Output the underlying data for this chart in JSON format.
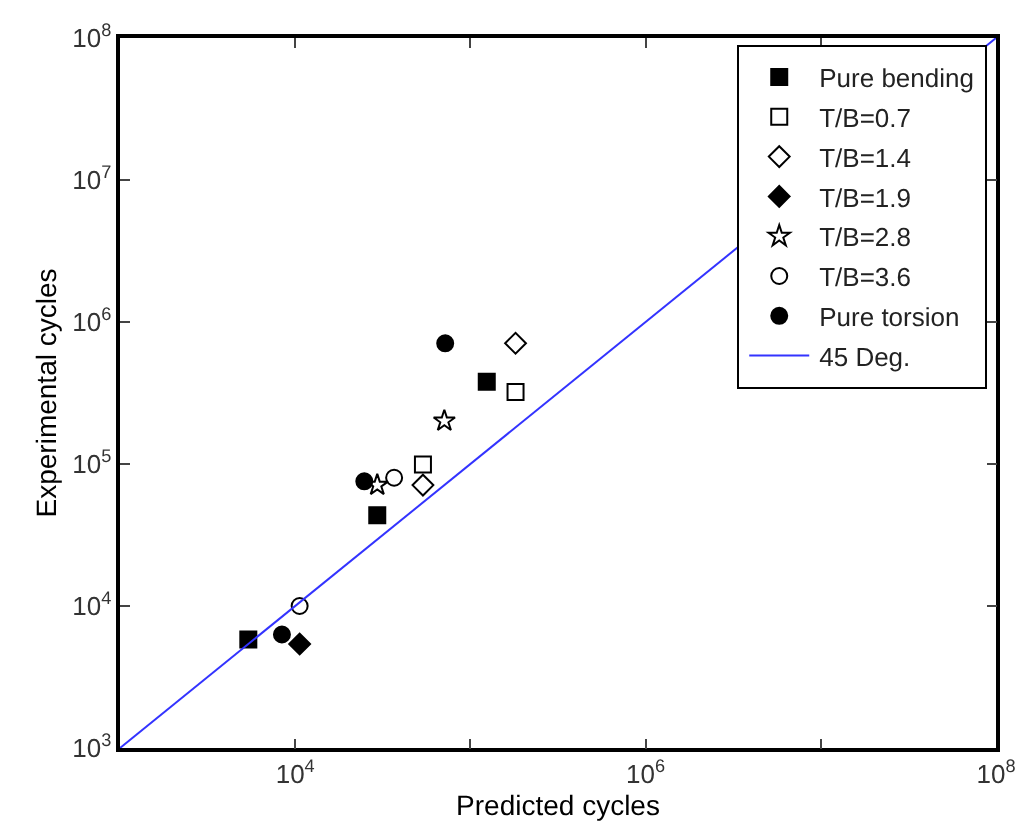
{
  "chart_data": {
    "type": "scatter",
    "xlabel": "Predicted cycles",
    "ylabel": "Experimental cycles",
    "log": "xy",
    "xlim": [
      1000,
      100000000
    ],
    "ylim": [
      1000,
      100000000
    ],
    "xticks": [
      {
        "value": 1000,
        "label": null
      },
      {
        "value": 10000,
        "label": "10$^{4}$"
      },
      {
        "value": 100000,
        "label": null
      },
      {
        "value": 1000000,
        "label": "10$^{6}$"
      },
      {
        "value": 10000000,
        "label": null
      },
      {
        "value": 100000000,
        "label": "10$^{8}$"
      }
    ],
    "yticks": [
      {
        "value": 1000,
        "label": "10$^{3}$"
      },
      {
        "value": 10000,
        "label": "10$^{4}$"
      },
      {
        "value": 100000,
        "label": "10$^{5}$"
      },
      {
        "value": 1000000,
        "label": "10$^{6}$"
      },
      {
        "value": 10000000,
        "label": "10$^{7}$"
      },
      {
        "value": 100000000,
        "label": "10$^{8}$"
      }
    ],
    "legend": "top right",
    "series": [
      {
        "name": "Pure bending",
        "color": "#000000",
        "marker": "square",
        "x": [
          5400,
          29400,
          124000
        ],
        "values": [
          5800,
          43600,
          379000
        ]
      },
      {
        "name": "T/B=0.7",
        "color": "#000000",
        "marker": "square-open",
        "x": [
          53600,
          181000
        ],
        "values": [
          99000,
          322000
        ]
      },
      {
        "name": "T/B=1.4",
        "color": "#000000",
        "marker": "diamond-open",
        "x": [
          53600,
          181000
        ],
        "values": [
          71000,
          708000
        ]
      },
      {
        "name": "T/B=1.9",
        "color": "#000000",
        "marker": "diamond",
        "x": [
          10600
        ],
        "values": [
          5400
        ]
      },
      {
        "name": "T/B=2.8",
        "color": "#000000",
        "marker": "star-open",
        "x": [
          29400,
          71000
        ],
        "values": [
          71000,
          201000
        ]
      },
      {
        "name": "T/B=3.6",
        "color": "#000000",
        "marker": "circle-open",
        "x": [
          10600,
          36700
        ],
        "values": [
          10000,
          80000
        ]
      },
      {
        "name": "Pure torsion",
        "color": "#000000",
        "marker": "circle",
        "x": [
          8400,
          24800,
          71800
        ],
        "values": [
          6300,
          75500,
          708000
        ]
      },
      {
        "name": "45 Deg.",
        "type": "line",
        "color": "#3333ff",
        "marker": "none",
        "x": [
          1000,
          100000000
        ],
        "values": [
          1000,
          100000000
        ]
      }
    ]
  }
}
